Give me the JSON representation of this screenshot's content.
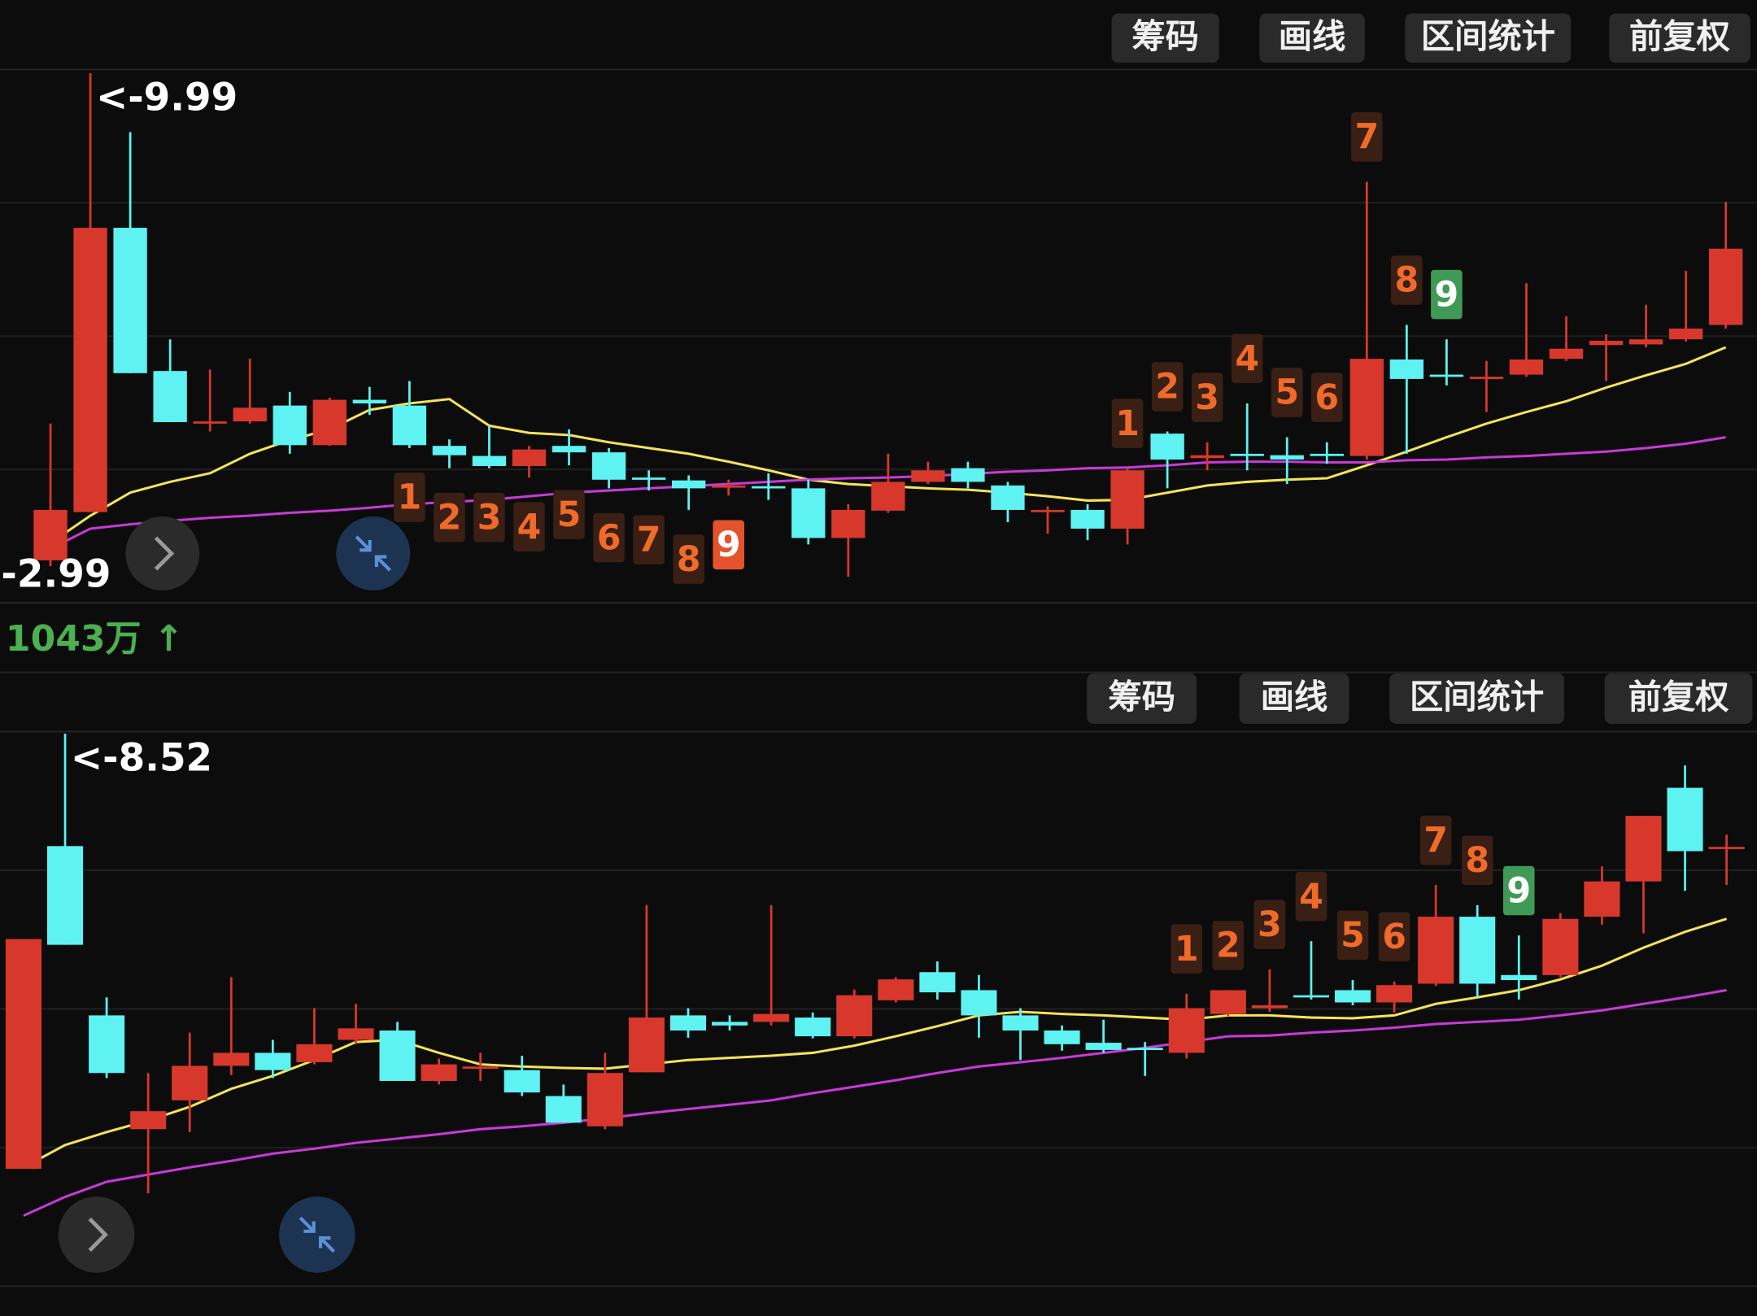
{
  "chart_data": [
    {
      "type": "candlestick",
      "toolbar": [
        "筹码",
        "画线",
        "区间统计",
        "前复权"
      ],
      "up_color": "#d8382c",
      "down_color": "#5ef2f2",
      "ylim": [
        2.63,
        10.04
      ],
      "open": [
        3.22,
        3.89,
        7.84,
        5.85,
        5.12,
        5.15,
        5.37,
        4.82,
        5.45,
        5.37,
        4.81,
        4.67,
        4.53,
        4.81,
        4.72,
        4.37,
        4.33,
        4.23,
        4.25,
        4.22,
        3.53,
        3.91,
        4.31,
        4.5,
        4.26,
        3.89,
        3.92,
        3.66,
        4.98,
        4.64,
        4.7,
        4.68,
        4.7,
        4.67,
        6.01,
        5.8,
        5.74,
        5.8,
        6.02,
        6.21,
        6.22,
        6.29,
        6.49
      ],
      "high": [
        5.12,
        9.99,
        9.17,
        6.29,
        5.87,
        6.02,
        5.56,
        5.48,
        5.63,
        5.71,
        4.9,
        5.09,
        4.81,
        5.04,
        4.78,
        4.47,
        4.4,
        4.34,
        4.43,
        4.34,
        4.0,
        4.7,
        4.59,
        4.59,
        4.31,
        3.97,
        4.0,
        4.5,
        5.01,
        4.86,
        5.4,
        4.93,
        4.86,
        8.48,
        6.49,
        6.29,
        5.99,
        7.07,
        6.61,
        6.36,
        6.77,
        7.24,
        8.2
      ],
      "low": [
        3.14,
        3.89,
        5.82,
        5.14,
        5.01,
        5.12,
        4.7,
        4.81,
        5.24,
        4.78,
        4.5,
        4.5,
        4.37,
        4.54,
        4.22,
        4.19,
        3.92,
        4.12,
        4.06,
        3.44,
        2.99,
        3.88,
        4.28,
        4.22,
        3.75,
        3.59,
        3.5,
        3.44,
        4.22,
        4.47,
        4.47,
        4.28,
        4.56,
        4.62,
        4.7,
        5.65,
        5.28,
        5.77,
        5.99,
        5.71,
        6.18,
        6.26,
        6.44
      ],
      "close": [
        3.92,
        7.84,
        5.82,
        5.14,
        5.15,
        5.34,
        4.82,
        5.45,
        5.4,
        4.82,
        4.68,
        4.53,
        4.76,
        4.72,
        4.34,
        4.34,
        4.22,
        4.26,
        4.22,
        3.53,
        3.92,
        4.31,
        4.47,
        4.31,
        3.92,
        3.92,
        3.66,
        4.47,
        4.62,
        4.68,
        4.67,
        4.62,
        4.67,
        6.02,
        5.74,
        5.77,
        5.77,
        6.01,
        6.16,
        6.27,
        6.29,
        6.44,
        7.55
      ],
      "series": [
        {
          "color": "#f2e35a",
          "values": [
            3.46,
            3.84,
            4.16,
            4.31,
            4.43,
            4.7,
            4.89,
            5.04,
            5.31,
            5.4,
            5.46,
            5.09,
            4.99,
            4.96,
            4.86,
            4.78,
            4.7,
            4.59,
            4.47,
            4.34,
            4.28,
            4.25,
            4.22,
            4.2,
            4.16,
            4.11,
            4.05,
            4.06,
            4.16,
            4.26,
            4.31,
            4.34,
            4.36,
            4.54,
            4.73,
            4.93,
            5.12,
            5.28,
            5.43,
            5.62,
            5.79,
            5.95,
            6.18
          ]
        },
        {
          "color": "#c83ad8",
          "values": [
            3.38,
            3.66,
            3.72,
            3.77,
            3.81,
            3.84,
            3.88,
            3.91,
            3.95,
            4.0,
            4.03,
            4.06,
            4.11,
            4.16,
            4.19,
            4.22,
            4.25,
            4.28,
            4.31,
            4.34,
            4.36,
            4.37,
            4.39,
            4.42,
            4.45,
            4.47,
            4.5,
            4.51,
            4.54,
            4.58,
            4.59,
            4.59,
            4.58,
            4.58,
            4.61,
            4.62,
            4.65,
            4.67,
            4.7,
            4.73,
            4.78,
            4.84,
            4.93
          ]
        }
      ],
      "buy_setup": [
        null,
        null,
        null,
        null,
        null,
        null,
        null,
        null,
        null,
        "1",
        "2",
        "3",
        "4",
        "5",
        "6",
        "7",
        "8",
        "9",
        null,
        null,
        null,
        null,
        null,
        null,
        null,
        null,
        null,
        null,
        null,
        null,
        null,
        null,
        null,
        null,
        null,
        null,
        null,
        null,
        null,
        null,
        null,
        null,
        null
      ],
      "sell_setup": [
        null,
        null,
        null,
        null,
        null,
        null,
        null,
        null,
        null,
        null,
        null,
        null,
        null,
        null,
        null,
        null,
        null,
        null,
        null,
        null,
        null,
        null,
        null,
        null,
        null,
        null,
        null,
        "1",
        "2",
        "3",
        "4",
        "5",
        "6",
        "7",
        "8",
        "9",
        null,
        null,
        null,
        null,
        null,
        null,
        null
      ],
      "setup_colors": {
        "text": "#f06a2a",
        "box": "#3a1f14",
        "buy_done": "#e4532c",
        "sell_done": "#3f9a56"
      },
      "high_label": "<-9.99",
      "low_label": "-2.99",
      "volume_label": "1043万 ↑"
    },
    {
      "type": "candlestick",
      "toolbar": [
        "筹码",
        "画线",
        "区间统计",
        "前复权"
      ],
      "up_color": "#d8382c",
      "down_color": "#5ef2f2",
      "ylim": [
        0.85,
        8.55
      ],
      "open": [
        2.48,
        6.96,
        4.61,
        3.03,
        3.43,
        3.91,
        4.09,
        3.96,
        4.27,
        4.4,
        3.7,
        3.87,
        3.85,
        3.49,
        3.07,
        3.82,
        4.61,
        4.52,
        4.52,
        4.58,
        4.32,
        4.82,
        5.21,
        4.96,
        4.61,
        4.4,
        4.23,
        4.16,
        4.09,
        4.63,
        4.71,
        4.89,
        4.96,
        4.79,
        5.05,
        5.98,
        5.17,
        5.17,
        5.98,
        6.47,
        7.77,
        6.92
      ],
      "high": [
        5.67,
        8.52,
        4.86,
        3.81,
        4.37,
        5.14,
        4.27,
        4.71,
        4.77,
        4.52,
        4.01,
        4.09,
        4.05,
        3.65,
        4.09,
        6.14,
        4.71,
        4.61,
        6.14,
        4.65,
        4.97,
        5.14,
        5.36,
        5.17,
        4.71,
        4.47,
        4.55,
        4.24,
        4.91,
        4.96,
        5.25,
        5.64,
        5.1,
        5.08,
        6.42,
        6.14,
        5.72,
        6.03,
        6.68,
        7.38,
        8.08,
        7.12
      ],
      "low": [
        2.48,
        5.59,
        3.74,
        2.14,
        2.99,
        3.78,
        3.74,
        3.93,
        4.21,
        3.7,
        3.65,
        3.7,
        3.49,
        3.12,
        3.03,
        3.82,
        4.3,
        4.4,
        4.47,
        4.29,
        4.29,
        4.79,
        4.83,
        4.3,
        3.99,
        4.12,
        4.09,
        3.77,
        4.01,
        4.6,
        4.66,
        4.83,
        4.75,
        4.65,
        5.02,
        4.86,
        4.83,
        5.14,
        5.87,
        5.75,
        6.34,
        6.42
      ],
      "close": [
        5.67,
        5.59,
        3.81,
        3.28,
        3.91,
        4.09,
        3.85,
        4.21,
        4.43,
        3.7,
        3.93,
        3.9,
        3.54,
        3.12,
        3.81,
        4.58,
        4.4,
        4.47,
        4.63,
        4.32,
        4.89,
        5.11,
        4.93,
        4.61,
        4.4,
        4.21,
        4.13,
        4.13,
        4.71,
        4.96,
        4.75,
        4.86,
        4.79,
        5.03,
        5.98,
        5.05,
        5.1,
        5.95,
        6.47,
        7.38,
        6.89,
        6.95
      ],
      "series": [
        {
          "color": "#f2e35a",
          "values": [
            2.5,
            2.81,
            2.99,
            3.15,
            3.34,
            3.59,
            3.77,
            3.99,
            4.24,
            4.27,
            4.09,
            3.93,
            3.9,
            3.88,
            3.87,
            3.93,
            3.99,
            4.02,
            4.05,
            4.09,
            4.19,
            4.32,
            4.46,
            4.61,
            4.66,
            4.63,
            4.61,
            4.58,
            4.55,
            4.61,
            4.61,
            4.58,
            4.57,
            4.61,
            4.77,
            4.86,
            4.96,
            5.11,
            5.3,
            5.55,
            5.77,
            5.95
          ]
        },
        {
          "color": "#c83ad8",
          "values": [
            1.83,
            2.09,
            2.3,
            2.4,
            2.5,
            2.59,
            2.69,
            2.76,
            2.84,
            2.9,
            2.96,
            3.03,
            3.07,
            3.12,
            3.18,
            3.25,
            3.31,
            3.37,
            3.43,
            3.53,
            3.62,
            3.71,
            3.81,
            3.9,
            3.96,
            4.02,
            4.09,
            4.16,
            4.24,
            4.32,
            4.33,
            4.37,
            4.4,
            4.44,
            4.49,
            4.52,
            4.55,
            4.61,
            4.68,
            4.77,
            4.86,
            4.96
          ]
        }
      ],
      "sell_setup": [
        null,
        null,
        null,
        null,
        null,
        null,
        null,
        null,
        null,
        null,
        null,
        null,
        null,
        null,
        null,
        null,
        null,
        null,
        null,
        null,
        null,
        null,
        null,
        null,
        null,
        null,
        null,
        null,
        "1",
        "2",
        "3",
        "4",
        "5",
        "6",
        "7",
        "8",
        "9",
        null,
        null,
        null,
        null,
        null
      ],
      "setup_colors": {
        "text": "#f06a2a",
        "box": "#3a1f14",
        "buy_done": "#e4532c",
        "sell_done": "#3f9a56"
      },
      "high_label": "<-8.52"
    }
  ]
}
